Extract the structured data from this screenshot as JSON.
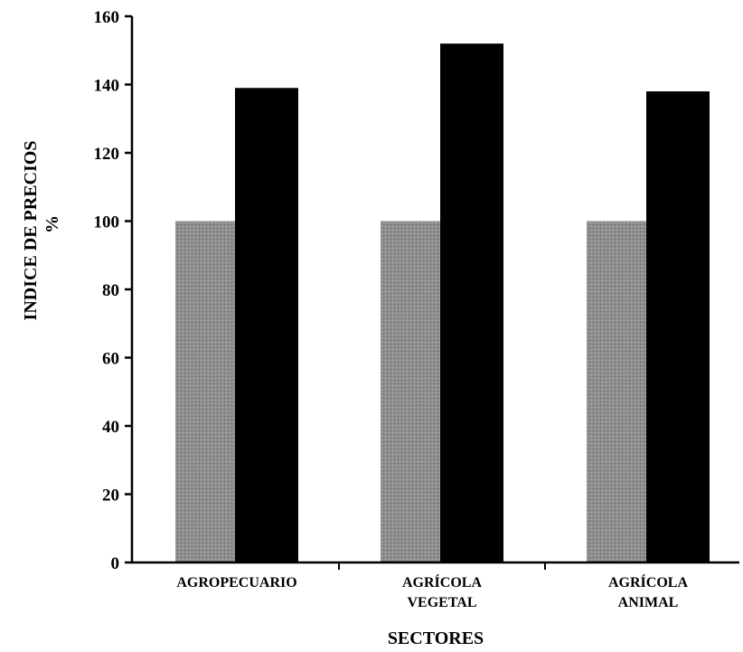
{
  "chart_data": {
    "type": "bar",
    "categories": [
      [
        "AGROPECUARIO"
      ],
      [
        "AGRÍCOLA",
        "VEGETAL"
      ],
      [
        "AGRÍCOLA",
        "ANIMAL"
      ]
    ],
    "series": [
      {
        "values": [
          100,
          100,
          100
        ],
        "color": "#8c8c8c"
      },
      {
        "values": [
          139,
          152,
          138
        ],
        "color": "#000000"
      }
    ],
    "ylabel": "INDICE DE PRECIOS",
    "ylabel_unit": "%",
    "xlabel": "SECTORES",
    "ylim": [
      0,
      160
    ],
    "yticks": [
      0,
      20,
      40,
      60,
      80,
      100,
      120,
      140,
      160
    ],
    "grid": false,
    "legend": "none"
  }
}
